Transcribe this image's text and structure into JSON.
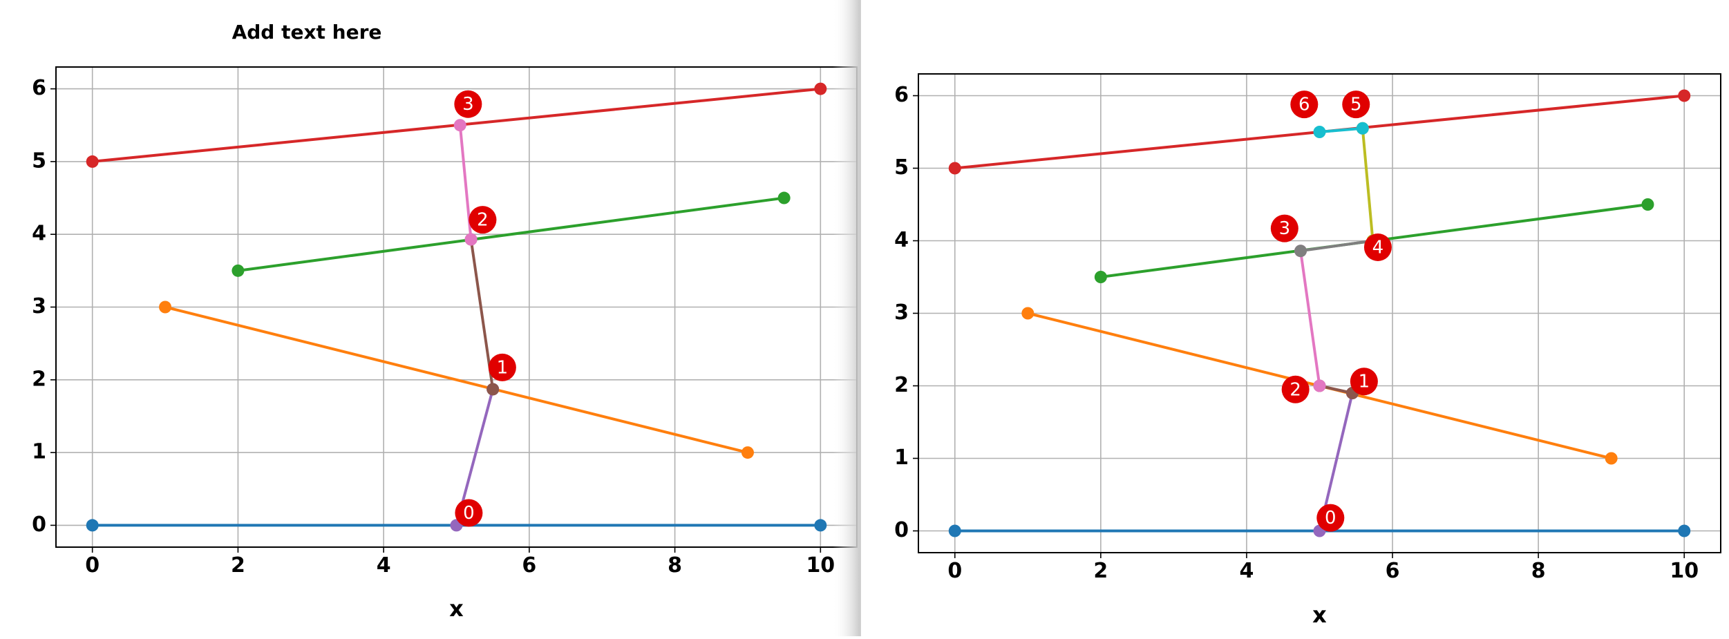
{
  "chart_data": [
    {
      "type": "line",
      "title": "Add text here",
      "xlabel": "x",
      "xlim": [
        -0.5,
        10.5
      ],
      "ylim": [
        -0.3,
        6.3
      ],
      "xticks": [
        0,
        2,
        4,
        6,
        8,
        10
      ],
      "yticks": [
        0,
        1,
        2,
        3,
        4,
        5,
        6
      ],
      "grid": true,
      "series": [
        {
          "color": "#1f77b4",
          "x": [
            0,
            10
          ],
          "values": [
            0,
            0
          ]
        },
        {
          "color": "#ff7f0e",
          "x": [
            1,
            9
          ],
          "values": [
            3,
            1
          ]
        },
        {
          "color": "#2ca02c",
          "x": [
            2,
            9.5
          ],
          "values": [
            3.5,
            4.5
          ]
        },
        {
          "color": "#d62728",
          "x": [
            0,
            10
          ],
          "values": [
            5,
            6
          ]
        },
        {
          "color": "#9467bd",
          "x": [
            5,
            5.5
          ],
          "values": [
            0,
            1.87
          ]
        },
        {
          "color": "#8c564b",
          "x": [
            5.5,
            5.2
          ],
          "values": [
            1.87,
            3.93
          ]
        },
        {
          "color": "#e377c2",
          "x": [
            5.2,
            5.05
          ],
          "values": [
            3.93,
            5.5
          ]
        }
      ],
      "annotations": [
        {
          "text": "0",
          "x": 5.17,
          "y": 0.17
        },
        {
          "text": "1",
          "x": 5.63,
          "y": 2.17
        },
        {
          "text": "2",
          "x": 5.36,
          "y": 4.2
        },
        {
          "text": "3",
          "x": 5.16,
          "y": 5.79
        }
      ]
    },
    {
      "type": "line",
      "xlabel": "x",
      "xlim": [
        -0.5,
        10.5
      ],
      "ylim": [
        -0.3,
        6.3
      ],
      "xticks": [
        0,
        2,
        4,
        6,
        8,
        10
      ],
      "yticks": [
        0,
        1,
        2,
        3,
        4,
        5,
        6
      ],
      "grid": true,
      "series": [
        {
          "color": "#1f77b4",
          "x": [
            0,
            10
          ],
          "values": [
            0,
            0
          ]
        },
        {
          "color": "#ff7f0e",
          "x": [
            1,
            9
          ],
          "values": [
            3,
            1
          ]
        },
        {
          "color": "#2ca02c",
          "x": [
            2,
            9.5
          ],
          "values": [
            3.5,
            4.5
          ]
        },
        {
          "color": "#d62728",
          "x": [
            0,
            10
          ],
          "values": [
            5,
            6
          ]
        },
        {
          "color": "#9467bd",
          "x": [
            5,
            5.45
          ],
          "values": [
            0,
            1.9
          ]
        },
        {
          "color": "#8c564b",
          "x": [
            5.45,
            5
          ],
          "values": [
            1.9,
            2
          ]
        },
        {
          "color": "#e377c2",
          "x": [
            5,
            4.74
          ],
          "values": [
            2,
            3.86
          ]
        },
        {
          "color": "#7f7f7f",
          "x": [
            4.74,
            5.73
          ],
          "values": [
            3.86,
            4
          ]
        },
        {
          "color": "#bcbd22",
          "x": [
            5.73,
            5.59
          ],
          "values": [
            4,
            5.55
          ]
        },
        {
          "color": "#17becf",
          "x": [
            5.59,
            5
          ],
          "values": [
            5.55,
            5.5
          ]
        }
      ],
      "annotations": [
        {
          "text": "0",
          "x": 5.15,
          "y": 0.18
        },
        {
          "text": "1",
          "x": 5.61,
          "y": 2.06
        },
        {
          "text": "2",
          "x": 4.67,
          "y": 1.95
        },
        {
          "text": "3",
          "x": 4.52,
          "y": 4.17
        },
        {
          "text": "4",
          "x": 5.8,
          "y": 3.91
        },
        {
          "text": "5",
          "x": 5.5,
          "y": 5.88
        },
        {
          "text": "6",
          "x": 4.79,
          "y": 5.88
        }
      ]
    }
  ]
}
